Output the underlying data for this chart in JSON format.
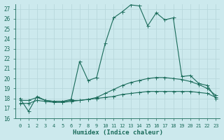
{
  "xlabel": "Humidex (Indice chaleur)",
  "bg_color": "#cce9ed",
  "grid_color": "#b8d8dc",
  "line_color": "#1a6b5a",
  "xlim": [
    -0.5,
    23.5
  ],
  "ylim": [
    16,
    27.5
  ],
  "xticks": [
    0,
    1,
    2,
    3,
    4,
    5,
    6,
    7,
    8,
    9,
    10,
    11,
    12,
    13,
    14,
    15,
    16,
    17,
    18,
    19,
    20,
    21,
    22,
    23
  ],
  "yticks": [
    16,
    17,
    18,
    19,
    20,
    21,
    22,
    23,
    24,
    25,
    26,
    27
  ],
  "line1_x": [
    0,
    1,
    2,
    3,
    4,
    5,
    6,
    7,
    8,
    9,
    10,
    11,
    12,
    13,
    14,
    15,
    16,
    17,
    18,
    19,
    20,
    21,
    22,
    23
  ],
  "line1_y": [
    17.8,
    17.8,
    18.1,
    17.8,
    17.7,
    17.7,
    17.8,
    17.8,
    17.9,
    18.0,
    18.1,
    18.2,
    18.4,
    18.5,
    18.6,
    18.7,
    18.7,
    18.7,
    18.7,
    18.7,
    18.7,
    18.6,
    18.5,
    18.1
  ],
  "line2_x": [
    0,
    1,
    2,
    3,
    4,
    5,
    6,
    7,
    8,
    9,
    10,
    11,
    12,
    13,
    14,
    15,
    16,
    17,
    18,
    19,
    20,
    21,
    22,
    23
  ],
  "line2_y": [
    17.5,
    17.5,
    17.8,
    17.7,
    17.6,
    17.6,
    17.7,
    17.8,
    17.9,
    18.1,
    18.5,
    18.9,
    19.3,
    19.6,
    19.8,
    20.0,
    20.1,
    20.1,
    20.0,
    19.9,
    19.7,
    19.4,
    19.0,
    18.3
  ],
  "line3_x": [
    0,
    1,
    2,
    3,
    4,
    5,
    6,
    7,
    8,
    9,
    10,
    11,
    12,
    13,
    14,
    15,
    16,
    17,
    18,
    19,
    20,
    21,
    22,
    23
  ],
  "line3_y": [
    18.0,
    16.7,
    18.2,
    17.8,
    17.7,
    17.7,
    17.9,
    21.7,
    19.8,
    20.1,
    23.5,
    26.1,
    26.7,
    27.4,
    27.3,
    25.3,
    26.6,
    25.9,
    26.1,
    20.2,
    20.3,
    19.5,
    19.3,
    18.0
  ]
}
